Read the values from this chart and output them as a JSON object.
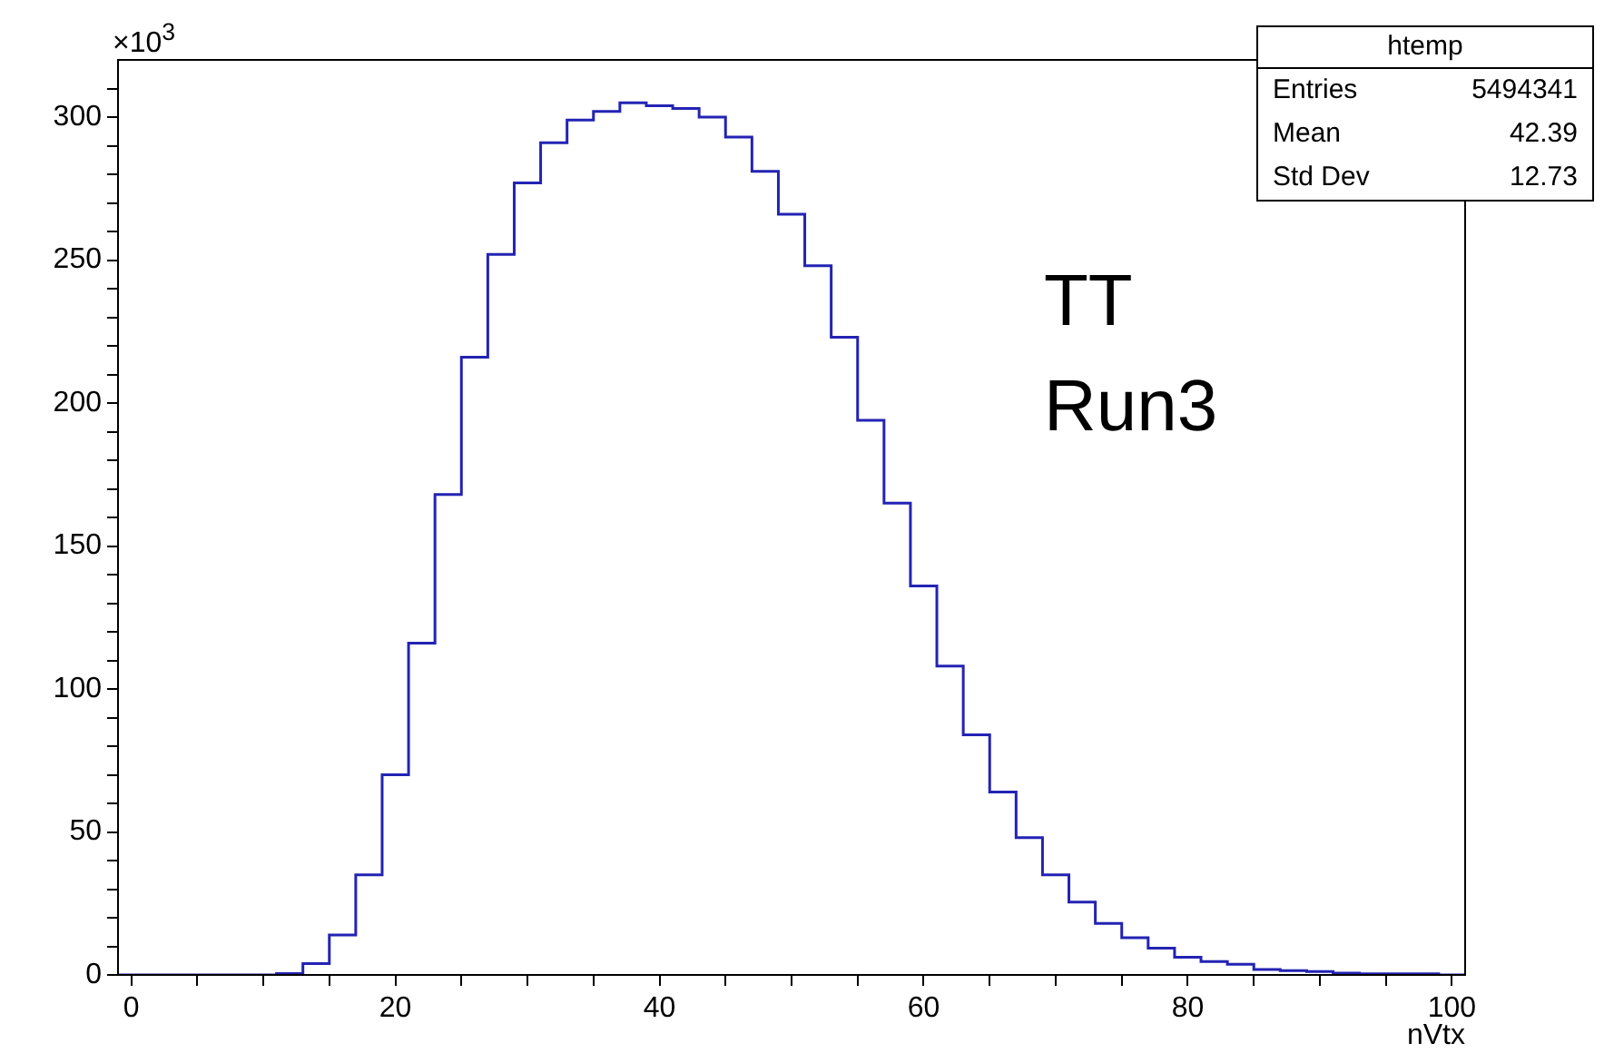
{
  "chart_data": {
    "type": "histogram",
    "xlabel": "nVtx",
    "bins": [
      -1,
      1,
      3,
      5,
      7,
      9,
      11,
      13,
      15,
      17,
      19,
      21,
      23,
      25,
      27,
      29,
      31,
      33,
      35,
      37,
      39,
      41,
      43,
      45,
      47,
      49,
      51,
      53,
      55,
      57,
      59,
      61,
      63,
      65,
      67,
      69,
      71,
      73,
      75,
      77,
      79,
      81,
      83,
      85,
      87,
      89,
      91,
      93,
      95,
      97,
      99,
      101
    ],
    "values": [
      0,
      0,
      0,
      0,
      0,
      0,
      0.5,
      4,
      14,
      35,
      70,
      116,
      168,
      216,
      252,
      277,
      291,
      299,
      302,
      305,
      304,
      303,
      300,
      293,
      281,
      266,
      248,
      223,
      194,
      165,
      136,
      108,
      84,
      64,
      48,
      35,
      25.5,
      18,
      13,
      9.4,
      6.2,
      4.7,
      3.7,
      1.9,
      1.5,
      1.2,
      0.6,
      0.4,
      0.4,
      0.4,
      0
    ],
    "color": "#2323b4",
    "xlim": [
      -1,
      101
    ],
    "xticks": [
      0,
      {
        "value": 5,
        "label": null
      },
      {
        "value": 10,
        "label": null
      },
      {
        "value": 15,
        "label": null
      },
      20,
      {
        "value": 25,
        "label": null
      },
      {
        "value": 30,
        "label": null
      },
      {
        "value": 35,
        "label": null
      },
      40,
      {
        "value": 45,
        "label": null
      },
      {
        "value": 50,
        "label": null
      },
      {
        "value": 55,
        "label": null
      },
      60,
      {
        "value": 65,
        "label": null
      },
      {
        "value": 70,
        "label": null
      },
      {
        "value": 75,
        "label": null
      },
      80,
      {
        "value": 85,
        "label": null
      },
      {
        "value": 90,
        "label": null
      },
      {
        "value": 95,
        "label": null
      },
      100
    ],
    "ylim": [
      0,
      320
    ],
    "yticks": [
      0,
      {
        "value": 10,
        "label": null
      },
      {
        "value": 20,
        "label": null
      },
      {
        "value": 30,
        "label": null
      },
      {
        "value": 40,
        "label": null
      },
      50,
      {
        "value": 60,
        "label": null
      },
      {
        "value": 70,
        "label": null
      },
      {
        "value": 80,
        "label": null
      },
      {
        "value": 90,
        "label": null
      },
      100,
      {
        "value": 110,
        "label": null
      },
      {
        "value": 120,
        "label": null
      },
      {
        "value": 130,
        "label": null
      },
      {
        "value": 140,
        "label": null
      },
      150,
      {
        "value": 160,
        "label": null
      },
      {
        "value": 170,
        "label": null
      },
      {
        "value": 180,
        "label": null
      },
      {
        "value": 190,
        "label": null
      },
      200,
      {
        "value": 210,
        "label": null
      },
      {
        "value": 220,
        "label": null
      },
      {
        "value": 230,
        "label": null
      },
      {
        "value": 240,
        "label": null
      },
      250,
      {
        "value": 260,
        "label": null
      },
      {
        "value": 270,
        "label": null
      },
      {
        "value": 280,
        "label": null
      },
      {
        "value": 290,
        "label": null
      },
      300,
      {
        "value": 310,
        "label": null
      }
    ],
    "annotations": [
      "×10$^{3}$",
      "TT",
      "Run3",
      "htemp",
      "Entries 5494341",
      "Mean 42.39",
      "Std Dev 12.73"
    ]
  }
}
